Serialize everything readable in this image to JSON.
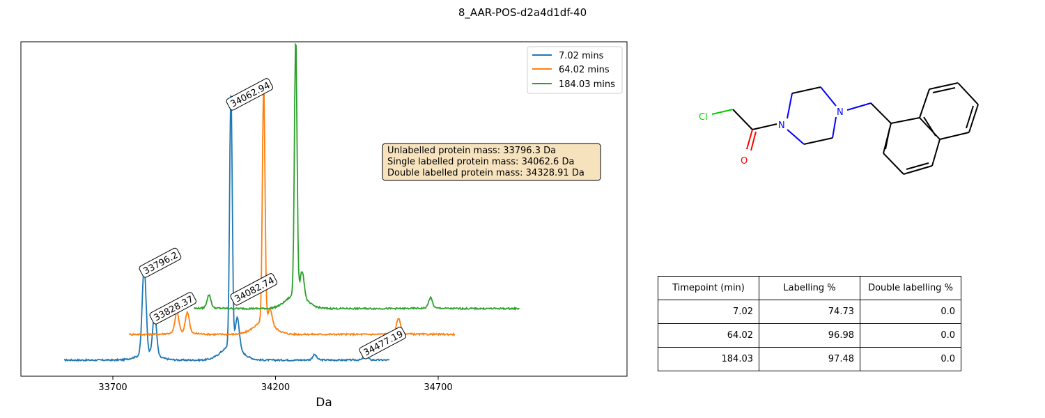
{
  "figure_title": "8_AAR-POS-d2a4d1df-40",
  "chart_data": {
    "type": "line",
    "title": "",
    "xlabel": "Da",
    "ylabel": "",
    "x_ticks": [
      33700,
      34200,
      34700
    ],
    "xlim": [
      33560,
      35490
    ],
    "y_ticks": [],
    "legend_position": "top-right",
    "series": [
      {
        "name": "7.02 mins",
        "color": "#1f77b4",
        "x_offset": 0,
        "baseline": 0.0,
        "x_start": 33550,
        "x_end": 34550,
        "peaks": [
          [
            33796.2,
            0.34
          ],
          [
            33828.37,
            0.16
          ],
          [
            34062.94,
            1.0
          ],
          [
            34082.74,
            0.12
          ],
          [
            34320,
            0.02
          ],
          [
            34477.19,
            0.02
          ]
        ]
      },
      {
        "name": "64.02 mins",
        "color": "#ff7f0e",
        "baseline": 0.1,
        "x_start": 33650,
        "x_end": 34650,
        "peaks": [
          [
            33796.2,
            0.08
          ],
          [
            33828.37,
            0.08
          ],
          [
            34062.94,
            0.92
          ],
          [
            34082.74,
            0.06
          ],
          [
            34477.19,
            0.06
          ]
        ]
      },
      {
        "name": "184.03 mins",
        "color": "#2ca02c",
        "baseline": 0.2,
        "x_start": 33750,
        "x_end": 34750,
        "peaks": [
          [
            33796.2,
            0.05
          ],
          [
            34062.94,
            1.0
          ],
          [
            34082.74,
            0.1
          ],
          [
            34477.19,
            0.04
          ]
        ]
      }
    ],
    "peak_labels": [
      "33796.2",
      "33828.37",
      "34062.94",
      "34082.74",
      "34477.19"
    ],
    "info_box": [
      "Unlabelled protein mass: 33796.3 Da",
      "Single labelled protein mass: 34062.6 Da",
      "Double labelled protein mass: 34328.91 Da"
    ]
  },
  "molecule": {
    "atoms": [
      "Cl",
      "O",
      "N",
      "N"
    ],
    "colors": {
      "Cl": "#00cc00",
      "O": "#ff0000",
      "N": "#0000ff",
      "bond": "#000000"
    }
  },
  "table": {
    "headers": [
      "Timepoint (min)",
      "Labelling %",
      "Double labelling %"
    ],
    "rows": [
      [
        "7.02",
        "74.73",
        "0.0"
      ],
      [
        "64.02",
        "96.98",
        "0.0"
      ],
      [
        "184.03",
        "97.48",
        "0.0"
      ]
    ]
  }
}
